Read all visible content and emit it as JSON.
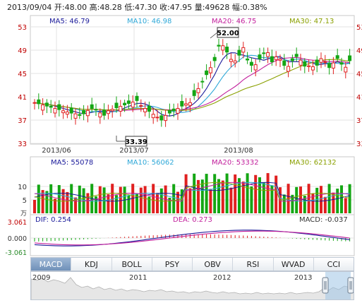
{
  "header": {
    "date": "2013/09/04",
    "open": "开:48.00",
    "high": "高:48.28",
    "low": "低:47.30",
    "close": "收:47.95",
    "volume": "量:49628",
    "change": "幅:0.38%"
  },
  "price_panel": {
    "ma_labels": [
      {
        "text": "MA5: 46.79",
        "color": "#1a1a9a"
      },
      {
        "text": "MA10: 46.98",
        "color": "#2fa8d8"
      },
      {
        "text": "MA20: 46.75",
        "color": "#c21f9c"
      },
      {
        "text": "MA30: 47.13",
        "color": "#8aa000"
      }
    ],
    "y_ticks": [
      "53",
      "49",
      "45",
      "41",
      "37",
      "33"
    ],
    "x_ticks": [
      "2013/06",
      "2013/07",
      "2013/08"
    ],
    "high_marker": "52.00",
    "low_marker": "33.39"
  },
  "volume_panel": {
    "ma_labels": [
      {
        "text": "MA5: 55078",
        "color": "#1a1a9a"
      },
      {
        "text": "MA10: 56062",
        "color": "#2fa8d8"
      },
      {
        "text": "MA20: 53332",
        "color": "#c21f9c"
      },
      {
        "text": "MA30: 62132",
        "color": "#8aa000"
      }
    ],
    "y_ticks": [
      "10",
      "5"
    ],
    "unit": "万"
  },
  "macd_panel": {
    "dif_label": "DIF: 0.254",
    "dea_label": "DEA: 0.273",
    "macd_label": "MACD: -0.037",
    "y_ticks": [
      "3.061",
      "0.000",
      "-3.061"
    ]
  },
  "tabs": [
    {
      "label": "MACD",
      "active": true
    },
    {
      "label": "KDJ",
      "active": false
    },
    {
      "label": "BOLL",
      "active": false
    },
    {
      "label": "PSY",
      "active": false
    },
    {
      "label": "OBV",
      "active": false
    },
    {
      "label": "RSI",
      "active": false
    },
    {
      "label": "WVAD",
      "active": false
    },
    {
      "label": "CCI",
      "active": false
    }
  ],
  "navigator": {
    "years": [
      "2009",
      "2011",
      "2012",
      "2013"
    ]
  },
  "colors": {
    "up": "#e02020",
    "down": "#14a614",
    "grid": "#e3e3e3",
    "axis_text": "#c00000"
  }
}
